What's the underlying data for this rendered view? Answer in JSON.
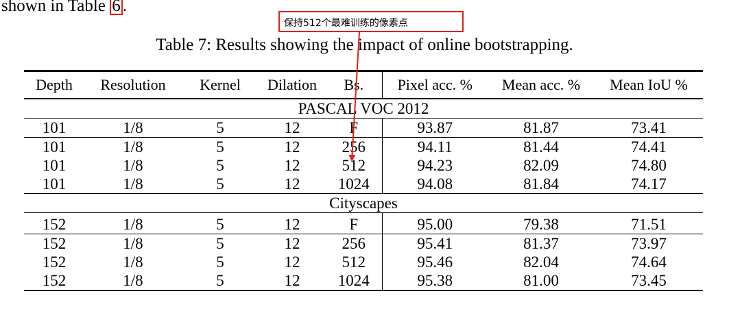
{
  "top_text": {
    "before": "shown in Table ",
    "ref": "6",
    "after": "."
  },
  "annotation": {
    "text": "保持512个最难训练的像素点",
    "color": "#e0201b"
  },
  "caption": "Table 7: Results showing the impact of online bootstrapping.",
  "headers": [
    "Depth",
    "Resolution",
    "Kernel",
    "Dilation",
    "Bs.",
    "Pixel acc. %",
    "Mean acc. %",
    "Mean IoU %"
  ],
  "sections": [
    {
      "title": "PASCAL VOC 2012",
      "rows": [
        [
          "101",
          "1/8",
          "5",
          "12",
          "F",
          "93.87",
          "81.87",
          "73.41"
        ],
        [
          "101",
          "1/8",
          "5",
          "12",
          "256",
          "94.11",
          "81.44",
          "74.41"
        ],
        [
          "101",
          "1/8",
          "5",
          "12",
          "512",
          "94.23",
          "82.09",
          "74.80"
        ],
        [
          "101",
          "1/8",
          "5",
          "12",
          "1024",
          "94.08",
          "81.84",
          "74.17"
        ]
      ]
    },
    {
      "title": "Cityscapes",
      "rows": [
        [
          "152",
          "1/8",
          "5",
          "12",
          "F",
          "95.00",
          "79.38",
          "71.51"
        ],
        [
          "152",
          "1/8",
          "5",
          "12",
          "256",
          "95.41",
          "81.37",
          "73.97"
        ],
        [
          "152",
          "1/8",
          "5",
          "12",
          "512",
          "95.46",
          "82.04",
          "74.64"
        ],
        [
          "152",
          "1/8",
          "5",
          "12",
          "1024",
          "95.38",
          "81.00",
          "73.45"
        ]
      ]
    }
  ]
}
